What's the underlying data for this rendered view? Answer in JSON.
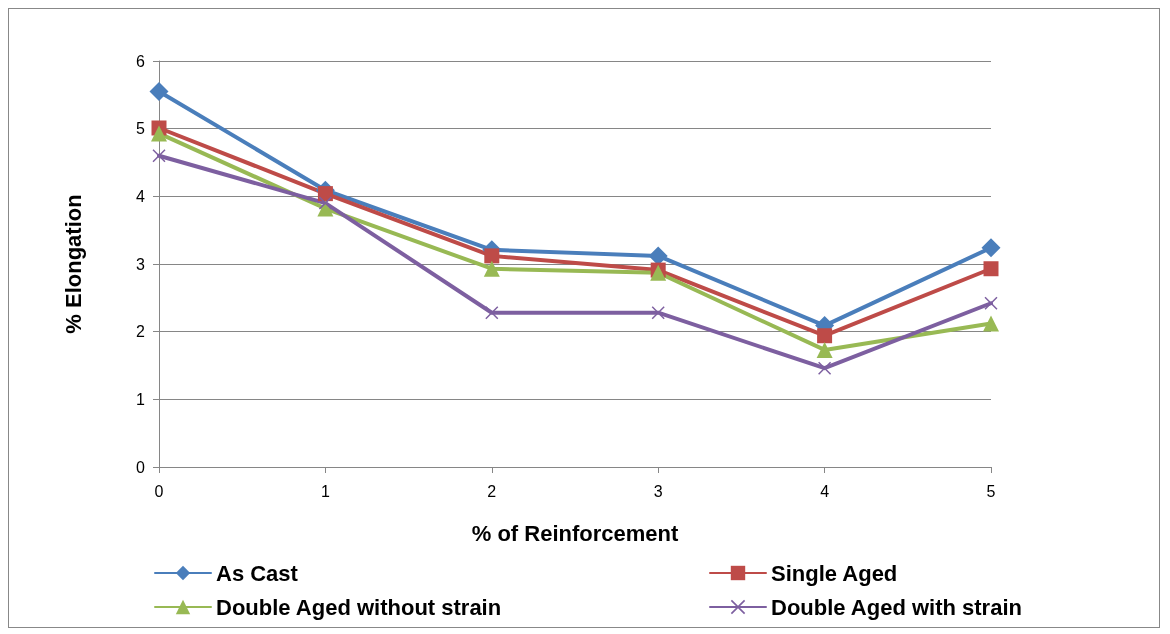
{
  "chart_data": {
    "type": "line",
    "xlabel": "% of Reinforcement",
    "ylabel": "% Elongation",
    "x": [
      0,
      1,
      2,
      3,
      4,
      5
    ],
    "xlim": [
      0,
      5
    ],
    "xticks": [
      0,
      1,
      2,
      3,
      4,
      5
    ],
    "ylim": [
      0,
      6
    ],
    "yticks": [
      0,
      1,
      2,
      3,
      4,
      5,
      6
    ],
    "grid": "y",
    "legend": "bottom",
    "line_style": "solid",
    "series": [
      {
        "name": "As Cast",
        "color": "#4a7ebb",
        "marker": "diamond",
        "values": [
          5.55,
          4.09,
          3.21,
          3.12,
          2.09,
          3.24
        ]
      },
      {
        "name": "Single Aged",
        "color": "#be4b48",
        "marker": "square",
        "values": [
          5.01,
          4.04,
          3.12,
          2.91,
          1.94,
          2.93
        ]
      },
      {
        "name": "Double Aged without strain",
        "color": "#98b954",
        "marker": "triangle",
        "values": [
          4.93,
          3.82,
          2.93,
          2.87,
          1.73,
          2.12
        ]
      },
      {
        "name": "Double Aged with strain",
        "color": "#7d5fa0",
        "marker": "cross",
        "values": [
          4.6,
          3.9,
          2.28,
          2.28,
          1.46,
          2.42
        ]
      }
    ]
  }
}
